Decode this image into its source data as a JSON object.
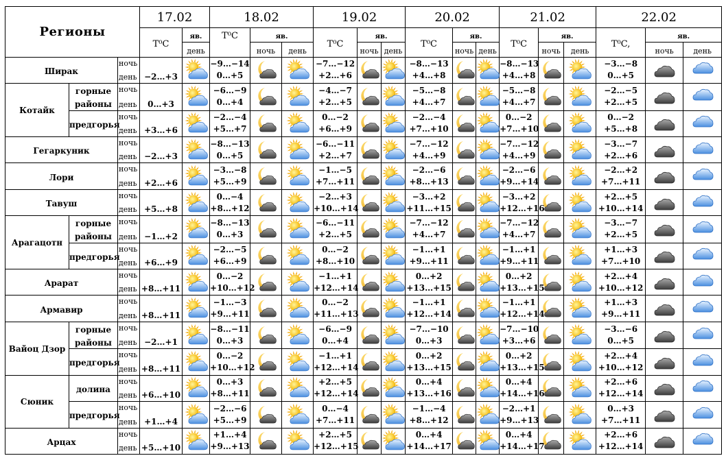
{
  "header": {
    "regions_title": "Регионы",
    "temp_label": "T⁰C",
    "temp_label_alt": "T⁰C,",
    "yav": "яв.",
    "night": "ночь",
    "day": "день",
    "dates": [
      "17.02",
      "18.02",
      "19.02",
      "20.02",
      "21.02",
      "22.02"
    ]
  },
  "row_labels": {
    "night": "ночь",
    "day": "день"
  },
  "regions": [
    {
      "name": "Ширак",
      "sub": null,
      "t17": "−2…+3",
      "t": [
        [
          "−9…−14",
          "0…+5"
        ],
        [
          "−7…−12",
          "+2…+6"
        ],
        [
          "−8…−13",
          "+4…+8"
        ],
        [
          "−8…−13",
          "+4…+8"
        ],
        [
          "−3…−8",
          "0…+5"
        ]
      ]
    },
    {
      "name": "Котайк",
      "sub": "горные районы",
      "t17": "0…+3",
      "t": [
        [
          "−6…−9",
          "0…+4"
        ],
        [
          "−4…−7",
          "+2…+5"
        ],
        [
          "−5…−8",
          "+4…+7"
        ],
        [
          "−5…−8",
          "+4…+7"
        ],
        [
          "−2…−5",
          "+2…+5"
        ]
      ]
    },
    {
      "name": "",
      "sub": "предгорья",
      "t17": "+3…+6",
      "t": [
        [
          "−2…−4",
          "+5…+7"
        ],
        [
          "0…−2",
          "+6…+9"
        ],
        [
          "−2…−4",
          "+7…+10"
        ],
        [
          "0…−2",
          "+7…+10"
        ],
        [
          "0…−2",
          "+5…+8"
        ]
      ]
    },
    {
      "name": "Гегаркуник",
      "sub": null,
      "t17": "−2…+3",
      "t": [
        [
          "−8…−13",
          "0…+5"
        ],
        [
          "−6…−11",
          "+2…+7"
        ],
        [
          "−7…−12",
          "+4…+9"
        ],
        [
          "−7…−12",
          "+4…+9"
        ],
        [
          "−3…−7",
          "+2…+6"
        ]
      ]
    },
    {
      "name": "Лори",
      "sub": null,
      "t17": "+2…+6",
      "t": [
        [
          "−3…−8",
          "+5…+9"
        ],
        [
          "−1…−5",
          "+7…+11"
        ],
        [
          "−2…−6",
          "+8…+13"
        ],
        [
          "−2…−6",
          "+9…+14"
        ],
        [
          "−2…+2",
          "+7…+11"
        ]
      ]
    },
    {
      "name": "Тавуш",
      "sub": null,
      "t17": "+5…+8",
      "t": [
        [
          "0…−4",
          "+8…+12"
        ],
        [
          "−2…+3",
          "+10…+14"
        ],
        [
          "−3…+2",
          "+11…+15"
        ],
        [
          "−3…+2",
          "+12…+16"
        ],
        [
          "+2…+5",
          "+10…+14"
        ]
      ]
    },
    {
      "name": "Арагацотн",
      "sub": "горные районы",
      "t17": "−1…+2",
      "t": [
        [
          "−8…−13",
          "0…+3"
        ],
        [
          "−6…−11",
          "+2…+5"
        ],
        [
          "−7…−12",
          "+4…+7"
        ],
        [
          "−7…−12",
          "+4…+7"
        ],
        [
          "−3…−7",
          "+2…+5"
        ]
      ]
    },
    {
      "name": "",
      "sub": "предгорья",
      "t17": "+6…+9",
      "t": [
        [
          "−2…−5",
          "+6…+9"
        ],
        [
          "0…−2",
          "+8…+10"
        ],
        [
          "−1…+1",
          "+9…+11"
        ],
        [
          "−1…+1",
          "+9…+11"
        ],
        [
          "+1…+3",
          "+7…+10"
        ]
      ]
    },
    {
      "name": "Арарат",
      "sub": null,
      "t17": "+8…+11",
      "t": [
        [
          "0…−2",
          "+10…+12"
        ],
        [
          "−1…+1",
          "+12…+14"
        ],
        [
          "0…+2",
          "+13…+15"
        ],
        [
          "0…+2",
          "+13…+15"
        ],
        [
          "+2…+4",
          "+10…+12"
        ]
      ]
    },
    {
      "name": "Армавир",
      "sub": null,
      "t17": "+8…+11",
      "t": [
        [
          "−1…−3",
          "+9…+11"
        ],
        [
          "0…−2",
          "+11…+13"
        ],
        [
          "−1…+1",
          "+12…+14"
        ],
        [
          "−1…+1",
          "+12…+14"
        ],
        [
          "+1…+3",
          "+9…+11"
        ]
      ]
    },
    {
      "name": "Вайоц Дзор",
      "sub": "горные районы",
      "t17": "−2…+1",
      "t": [
        [
          "−8…−11",
          "0…+3"
        ],
        [
          "−6…−9",
          "0…+4"
        ],
        [
          "−7…−10",
          "0…+3"
        ],
        [
          "−7…−10",
          "+3…+6"
        ],
        [
          "−3…−6",
          "0…+5"
        ]
      ]
    },
    {
      "name": "",
      "sub": "предгорья",
      "t17": "+8…+11",
      "t": [
        [
          "0…−2",
          "+10…+12"
        ],
        [
          "−1…+1",
          "+12…+14"
        ],
        [
          "0…+2",
          "+13…+15"
        ],
        [
          "0…+2",
          "+13…+15"
        ],
        [
          "+2…+4",
          "+10…+12"
        ]
      ]
    },
    {
      "name": "Сюник",
      "sub": "долина",
      "t17": "+6…+10",
      "t": [
        [
          "0…+3",
          "+8…+11"
        ],
        [
          "+2…+5",
          "+12…+14"
        ],
        [
          "0…+4",
          "+13…+16"
        ],
        [
          "0…+4",
          "+14…+16"
        ],
        [
          "+2…+6",
          "+12…+14"
        ]
      ]
    },
    {
      "name": "",
      "sub": "предгорья",
      "t17": "+1…+4",
      "t": [
        [
          "−2…−6",
          "+5…+9"
        ],
        [
          "0…−4",
          "+7…+11"
        ],
        [
          "−1…−4",
          "+8…+12"
        ],
        [
          "−2…+1",
          "+9…+13"
        ],
        [
          "0…+3",
          "+7…+11"
        ]
      ]
    },
    {
      "name": "Арцах",
      "sub": null,
      "t17": "+5…+10",
      "t": [
        [
          "+1…+4",
          "+9…+13"
        ],
        [
          "+2…+5",
          "+12…+15"
        ],
        [
          "0…+4",
          "+14…+17"
        ],
        [
          "0…+4",
          "+14…+17"
        ],
        [
          "+2…+6",
          "+12…+14"
        ]
      ]
    }
  ],
  "icons": {
    "d17": "sun-cloud-icon",
    "night": "moon-cloud-icon",
    "day": "sun-cloud-icon",
    "night22": "dark-cloud-icon",
    "day22": "blue-cloud-icon"
  }
}
